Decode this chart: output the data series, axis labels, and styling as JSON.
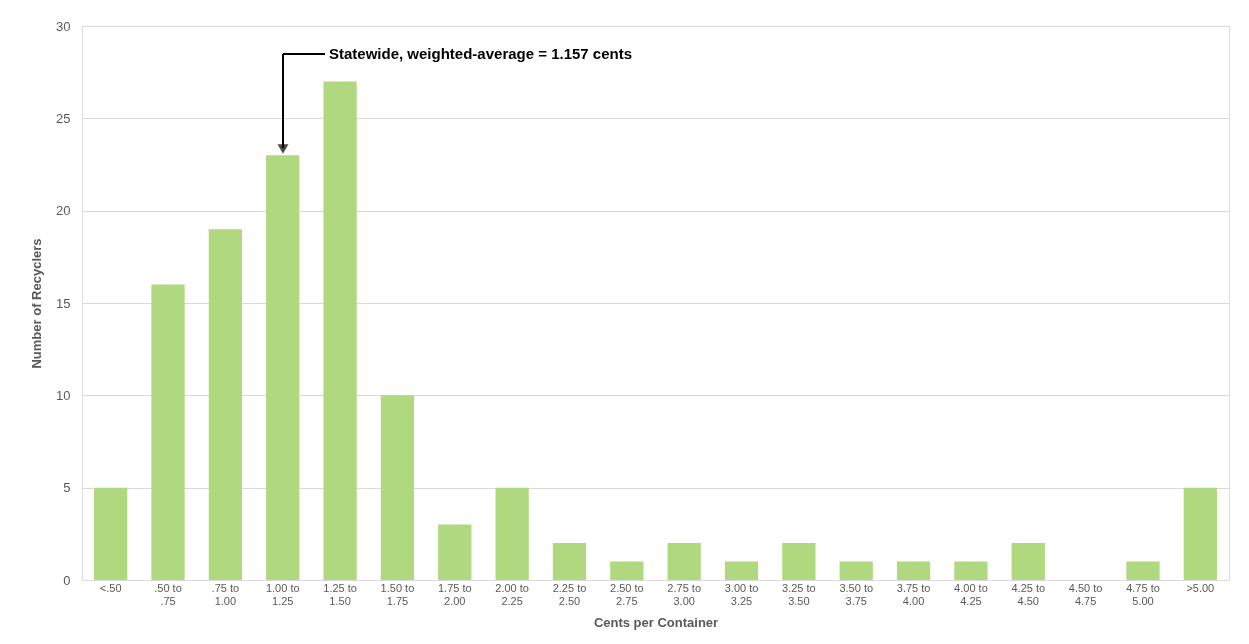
{
  "chart_data": {
    "type": "bar",
    "xlabel": "Cents per Container",
    "ylabel": "Number of Recyclers",
    "categories": [
      "<.50",
      ".50 to .75",
      ".75 to 1.00",
      "1.00 to 1.25",
      "1.25 to 1.50",
      "1.50 to 1.75",
      "1.75 to 2.00",
      "2.00 to 2.25",
      "2.25 to 2.50",
      "2.50 to 2.75",
      "2.75 to 3.00",
      "3.00 to 3.25",
      "3.25 to 3.50",
      "3.50 to 3.75",
      "3.75 to 4.00",
      "4.00 to 4.25",
      "4.25 to 4.50",
      "4.50 to 4.75",
      "4.75 to 5.00",
      ">5.00"
    ],
    "values": [
      5,
      16,
      19,
      23,
      27,
      10,
      3,
      5,
      2,
      1,
      2,
      1,
      2,
      1,
      1,
      1,
      2,
      0,
      1,
      5
    ],
    "color": "#b0d87f",
    "ylim": [
      0,
      30
    ],
    "yticks": [
      0,
      5,
      10,
      15,
      20,
      25,
      30
    ],
    "grid": "y",
    "annotations": [
      "Statewide, weighted-average = 1.157 cents"
    ]
  }
}
